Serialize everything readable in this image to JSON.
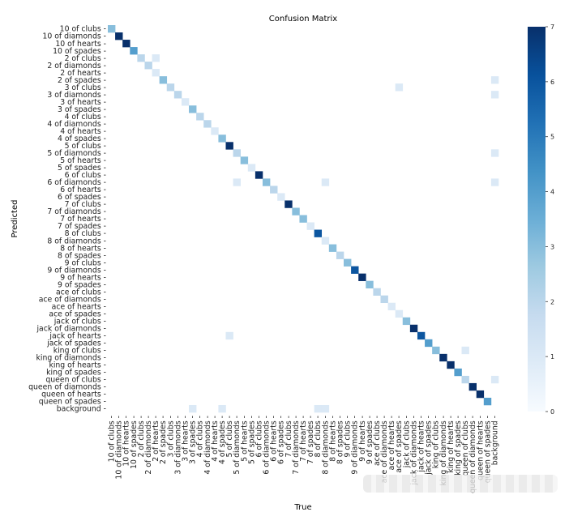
{
  "chart_data": {
    "type": "heatmap",
    "title": "Confusion Matrix",
    "xlabel": "True",
    "ylabel": "Predicted",
    "colormap": "Blues",
    "vmin": 0,
    "vmax": 7,
    "colorbar_ticks": [
      "0",
      "1",
      "2",
      "3",
      "4",
      "5",
      "6",
      "7"
    ],
    "labels": [
      "10 of clubs",
      "10 of diamonds",
      "10 of hearts",
      "10 of spades",
      "2 of clubs",
      "2 of diamonds",
      "2 of hearts",
      "2 of spades",
      "3 of clubs",
      "3 of diamonds",
      "3 of hearts",
      "3 of spades",
      "4 of clubs",
      "4 of diamonds",
      "4 of hearts",
      "4 of spades",
      "5 of clubs",
      "5 of diamonds",
      "5 of hearts",
      "5 of spades",
      "6 of clubs",
      "6 of diamonds",
      "6 of hearts",
      "6 of spades",
      "7 of clubs",
      "7 of diamonds",
      "7 of hearts",
      "7 of spades",
      "8 of clubs",
      "8 of diamonds",
      "8 of hearts",
      "8 of spades",
      "9 of clubs",
      "9 of diamonds",
      "9 of hearts",
      "9 of spades",
      "ace of clubs",
      "ace of diamonds",
      "ace of hearts",
      "ace of spades",
      "jack  of clubs",
      "jack of diamonds",
      "jack of hearts",
      "jack of spades",
      "king of clubs",
      "king of diamonds",
      "king of hearts",
      "king of spades",
      "queen of clubs",
      "queen of diamonds",
      "queen of hearts",
      "queen of spades",
      "background"
    ],
    "diagonal": [
      3,
      7,
      7,
      4,
      2,
      2,
      1,
      3,
      2,
      2,
      1,
      3,
      2,
      2,
      1,
      3,
      7,
      2,
      3,
      1,
      7,
      3,
      2,
      1,
      7,
      3,
      3,
      1,
      6,
      1,
      3,
      2,
      3,
      6,
      7,
      3,
      2,
      2,
      1,
      1,
      3,
      7,
      6,
      4,
      3,
      7,
      7,
      4,
      2,
      7,
      7,
      4,
      0
    ],
    "off_diagonal": [
      {
        "true": "2 of hearts",
        "predicted": "2 of clubs",
        "value": 1
      },
      {
        "true": "ace of spades",
        "predicted": "3 of clubs",
        "value": 1
      },
      {
        "true": "background",
        "predicted": "2 of spades",
        "value": 1
      },
      {
        "true": "background",
        "predicted": "3 of diamonds",
        "value": 1
      },
      {
        "true": "background",
        "predicted": "5 of diamonds",
        "value": 1
      },
      {
        "true": "5 of diamonds",
        "predicted": "6 of diamonds",
        "value": 1
      },
      {
        "true": "8 of diamonds",
        "predicted": "6 of diamonds",
        "value": 1
      },
      {
        "true": "background",
        "predicted": "6 of diamonds",
        "value": 1
      },
      {
        "true": "5 of clubs",
        "predicted": "jack of hearts",
        "value": 1
      },
      {
        "true": "queen of clubs",
        "predicted": "king of clubs",
        "value": 1
      },
      {
        "true": "background",
        "predicted": "queen of clubs",
        "value": 1
      },
      {
        "true": "3 of spades",
        "predicted": "background",
        "value": 1
      },
      {
        "true": "4 of spades",
        "predicted": "background",
        "value": 1
      },
      {
        "true": "8 of clubs",
        "predicted": "background",
        "value": 1
      },
      {
        "true": "8 of diamonds",
        "predicted": "background",
        "value": 1
      }
    ]
  }
}
